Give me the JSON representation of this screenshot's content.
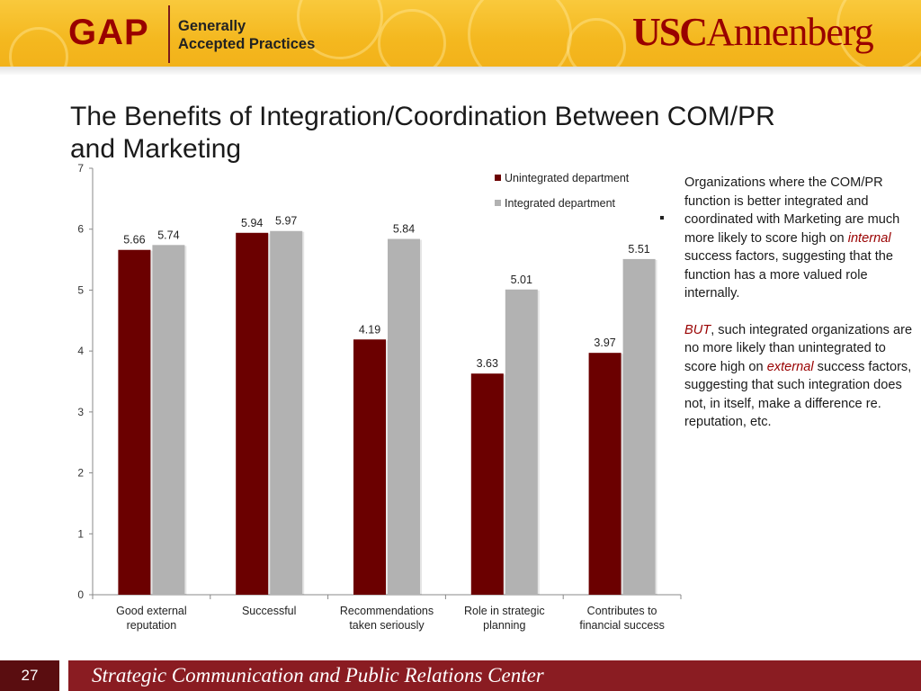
{
  "header": {
    "gap_logo": "GAP",
    "gap_subtitle_line1": "Generally",
    "gap_subtitle_line2": "Accepted Practices",
    "usc_logo_usc": "USC",
    "usc_logo_annenberg": "Annenberg"
  },
  "title": {
    "line1": "The Benefits of Integration/Coordination Between COM/PR",
    "line2": "and Marketing"
  },
  "chart_data": {
    "type": "bar",
    "categories": [
      [
        "Good external",
        "reputation"
      ],
      [
        "Successful"
      ],
      [
        "Recommendations",
        "taken seriously"
      ],
      [
        "Role in strategic",
        "planning"
      ],
      [
        "Contributes to",
        "financial success"
      ]
    ],
    "series": [
      {
        "name": "Unintegrated department",
        "color": "#6b0000",
        "values": [
          5.66,
          5.94,
          4.19,
          3.63,
          3.97
        ]
      },
      {
        "name": "Integrated department",
        "color": "#b2b2b2",
        "values": [
          5.74,
          5.97,
          5.84,
          5.01,
          5.51
        ]
      }
    ],
    "value_labels": {
      "Unintegrated department": [
        "5.66",
        "5.94",
        "4.19",
        "3.63",
        "3.97"
      ],
      "Integrated department": [
        "5.74",
        "5.97",
        "5.84",
        "5.01",
        "5.51"
      ]
    },
    "ylim": [
      0,
      7
    ],
    "yticks": [
      "0",
      "1",
      "2",
      "3",
      "4",
      "5",
      "6",
      "7"
    ],
    "legend_position": "top-right",
    "grid": false
  },
  "side_text": {
    "p1_before": "Organizations where the COM/PR function is better integrated  and coordinated with Marketing are much more likely to score high on ",
    "p1_emph": "internal",
    "p1_after": " success factors, suggesting that the function has a more valued role internally.",
    "p2_emph1": "BUT",
    "p2_mid": ", such integrated organizations are no more likely than unintegrated to score high on ",
    "p2_emph2": "external",
    "p2_after": " success factors, suggesting that such integration does not, in itself, make a difference re. reputation, etc."
  },
  "footer": {
    "page_number": "27",
    "center_name": "Strategic Communication and Public Relations Center"
  }
}
